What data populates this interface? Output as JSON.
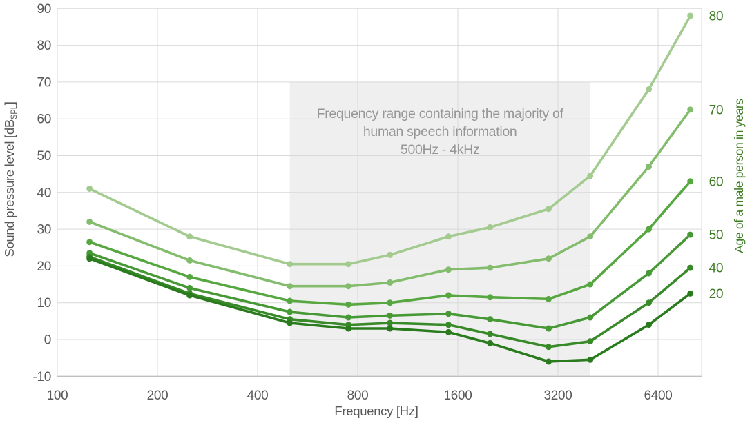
{
  "chart_data": {
    "type": "line",
    "title": "",
    "xlabel": "Frequency [Hz]",
    "ylabel": "Sound pressure level [dB SPL]",
    "ylabel_parts": {
      "main": "Sound pressure level [dB",
      "sub": "SPL",
      "end": "]"
    },
    "y2label": "Age of a male person in years",
    "x_scale": "log2",
    "grid": true,
    "x_ticks": [
      100,
      200,
      400,
      800,
      1600,
      3200,
      6400
    ],
    "y_ticks": [
      90,
      80,
      70,
      60,
      50,
      40,
      30,
      20,
      10,
      0,
      -10
    ],
    "ylim": [
      -10,
      90
    ],
    "xlim_hz": [
      100,
      8650
    ],
    "frequencies_hz": [
      125,
      250,
      500,
      750,
      1000,
      1500,
      2000,
      3000,
      4000,
      6000,
      8000
    ],
    "series": [
      {
        "name": "80",
        "age": 80,
        "color": "#a4cb8f",
        "values": [
          41,
          28,
          20.5,
          20.5,
          23,
          28,
          30.5,
          35.5,
          44.5,
          68,
          88
        ]
      },
      {
        "name": "70",
        "age": 70,
        "color": "#83bc6d",
        "values": [
          32,
          21.5,
          14.5,
          14.5,
          15.5,
          19,
          19.5,
          22,
          28,
          47,
          62.5
        ]
      },
      {
        "name": "60",
        "age": 60,
        "color": "#57a741",
        "values": [
          26.5,
          17,
          10.5,
          9.5,
          10,
          12,
          11.5,
          11,
          15,
          30,
          43
        ]
      },
      {
        "name": "50",
        "age": 50,
        "color": "#479936",
        "values": [
          23.5,
          14,
          7.5,
          6,
          6.5,
          7,
          5.5,
          3,
          6,
          18,
          28.5
        ]
      },
      {
        "name": "40",
        "age": 40,
        "color": "#388a29",
        "values": [
          22.5,
          12.5,
          5.5,
          4,
          4.5,
          4,
          1.5,
          -2,
          -0.5,
          10,
          19.5
        ]
      },
      {
        "name": "20",
        "age": 20,
        "color": "#2a7b1d",
        "values": [
          22,
          12,
          4.5,
          3,
          3,
          2,
          -1,
          -6,
          -5.5,
          4,
          12.5
        ]
      }
    ],
    "speech_region": {
      "x_from_hz": 500,
      "x_to_hz": 4000,
      "y_from_db": -10,
      "y_to_db": 70,
      "fill": "#efefef",
      "text_color": "#969696",
      "label_lines": [
        "Frequency range containing the majority of",
        "human speech information",
        "500Hz - 4kHz"
      ]
    },
    "colors": {
      "grid": "#d9d9d9",
      "axis": "#bfbfbf",
      "tick_text": "#595959",
      "age_text": "#3e7d23"
    },
    "legend_position": "right-of-last-point"
  }
}
